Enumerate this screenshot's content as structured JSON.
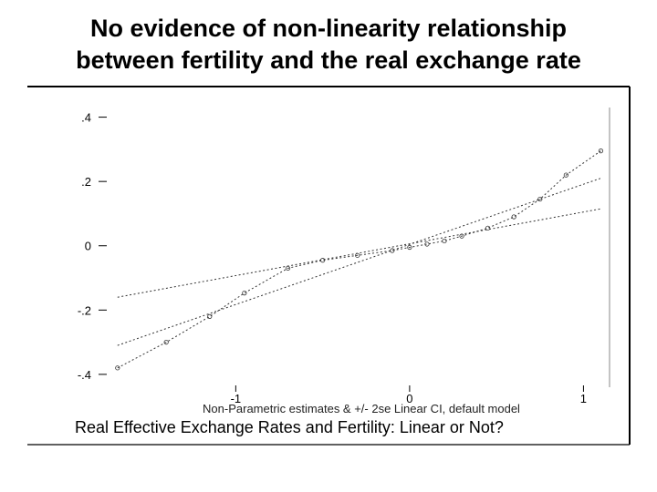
{
  "slide": {
    "title_line1": "No evidence of non-linearity relationship",
    "title_line2": "between fertility and the real exchange rate"
  },
  "chart_data": {
    "type": "line",
    "title": "",
    "caption": "Real Effective Exchange Rates and Fertility: Linear or Not?",
    "xlabel": "Non-Parametric estimates & +/- 2se Linear CI, default model",
    "ylabel": "",
    "xlim": [
      -1.7,
      1.15
    ],
    "ylim": [
      -0.44,
      0.43
    ],
    "x_ticks": [
      {
        "value": -1,
        "label": "-1"
      },
      {
        "value": 0,
        "label": "0"
      },
      {
        "value": 1,
        "label": "1"
      }
    ],
    "y_ticks": [
      {
        "value": 0.4,
        "label": ".4"
      },
      {
        "value": 0.2,
        "label": ".2"
      },
      {
        "value": 0,
        "label": "0"
      },
      {
        "value": -0.2,
        "label": "-.2"
      },
      {
        "value": -0.4,
        "label": "-.4"
      }
    ],
    "grid": false,
    "legend": "none",
    "series": [
      {
        "style": "dotted-with-circles",
        "points": [
          {
            "x": -1.68,
            "y": -0.38
          },
          {
            "x": -1.4,
            "y": -0.3
          },
          {
            "x": -1.15,
            "y": -0.22
          },
          {
            "x": -0.95,
            "y": -0.147
          },
          {
            "x": -0.7,
            "y": -0.07
          },
          {
            "x": -0.5,
            "y": -0.045
          },
          {
            "x": -0.3,
            "y": -0.03
          },
          {
            "x": -0.1,
            "y": -0.015
          },
          {
            "x": 0.0,
            "y": -0.005
          },
          {
            "x": 0.1,
            "y": 0.005
          },
          {
            "x": 0.2,
            "y": 0.015
          },
          {
            "x": 0.3,
            "y": 0.03
          },
          {
            "x": 0.45,
            "y": 0.055
          },
          {
            "x": 0.6,
            "y": 0.09
          },
          {
            "x": 0.75,
            "y": 0.145
          },
          {
            "x": 0.9,
            "y": 0.22
          },
          {
            "x": 1.1,
            "y": 0.295
          }
        ]
      },
      {
        "style": "dotted",
        "points": [
          {
            "x": -1.68,
            "y": -0.16
          },
          {
            "x": 1.1,
            "y": 0.115
          }
        ]
      },
      {
        "style": "dotted",
        "points": [
          {
            "x": -1.68,
            "y": -0.31
          },
          {
            "x": 1.1,
            "y": 0.21
          }
        ]
      }
    ]
  }
}
